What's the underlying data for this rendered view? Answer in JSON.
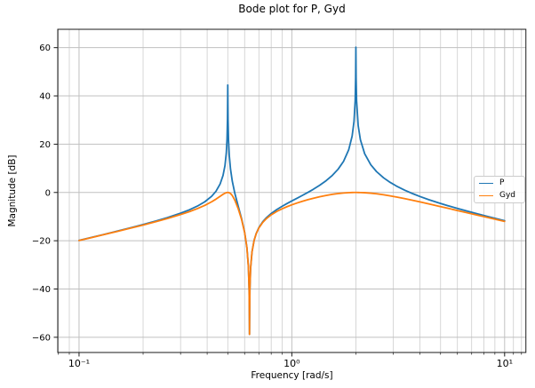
{
  "chart_data": {
    "type": "line",
    "title": "Bode plot for P, Gyd",
    "xlabel": "Frequency [rad/s]",
    "ylabel": "Magnitude [dB]",
    "x_scale": "log",
    "xlim": [
      0.07943,
      12.589
    ],
    "ylim": [
      -66.3,
      67.6
    ],
    "grid": "both",
    "grid_color_major": "#c0c0c0",
    "grid_color_minor": "#cdcdcd",
    "axis_color": "#1a1a1a",
    "background": "#ffffff",
    "legend_position": "center right",
    "x_major_ticks": [
      {
        "value": 0.1,
        "label": "10⁻¹"
      },
      {
        "value": 1,
        "label": "10⁰"
      },
      {
        "value": 10,
        "label": "10¹"
      }
    ],
    "x_minor_ticks": [
      0.08,
      0.09,
      0.2,
      0.3,
      0.4,
      0.5,
      0.6,
      0.7,
      0.8,
      0.9,
      2,
      3,
      4,
      5,
      6,
      7,
      8,
      9,
      11,
      12
    ],
    "y_ticks": [
      {
        "value": 60,
        "label": "60"
      },
      {
        "value": 40,
        "label": "40"
      },
      {
        "value": 20,
        "label": "20"
      },
      {
        "value": 0,
        "label": "0"
      },
      {
        "value": -20,
        "label": "−20"
      },
      {
        "value": -40,
        "label": "−40"
      },
      {
        "value": -60,
        "label": "−60"
      }
    ],
    "series": [
      {
        "name": "P",
        "color": "#1f77b4",
        "points": [
          [
            0.1,
            -19.85
          ],
          [
            0.115,
            -18.58
          ],
          [
            0.13,
            -17.45
          ],
          [
            0.15,
            -16.11
          ],
          [
            0.17,
            -14.91
          ],
          [
            0.2,
            -13.29
          ],
          [
            0.23,
            -11.82
          ],
          [
            0.26,
            -10.42
          ],
          [
            0.3,
            -8.6
          ],
          [
            0.33,
            -7.18
          ],
          [
            0.36,
            -5.64
          ],
          [
            0.39,
            -3.86
          ],
          [
            0.42,
            -1.57
          ],
          [
            0.44,
            0.49
          ],
          [
            0.46,
            3.46
          ],
          [
            0.475,
            7.05
          ],
          [
            0.485,
            11.11
          ],
          [
            0.492,
            16.28
          ],
          [
            0.496,
            22.12
          ],
          [
            0.4985,
            30.53
          ],
          [
            0.4995,
            38.8
          ],
          [
            0.5,
            44.5
          ],
          [
            0.5005,
            38.8
          ],
          [
            0.5015,
            30.4
          ],
          [
            0.504,
            21.75
          ],
          [
            0.508,
            15.53
          ],
          [
            0.515,
            9.69
          ],
          [
            0.525,
            4.66
          ],
          [
            0.54,
            -0.46
          ],
          [
            0.56,
            -5.75
          ],
          [
            0.58,
            -10.71
          ],
          [
            0.6,
            -16.48
          ],
          [
            0.615,
            -22.84
          ],
          [
            0.625,
            -30.79
          ],
          [
            0.63,
            -40.7
          ],
          [
            0.6318,
            -52.25
          ],
          [
            0.6325,
            -58.8
          ],
          [
            0.633,
            -53.9
          ],
          [
            0.635,
            -40.6
          ],
          [
            0.64,
            -31.4
          ],
          [
            0.65,
            -24.6
          ],
          [
            0.665,
            -19.8
          ],
          [
            0.68,
            -17.0
          ],
          [
            0.7,
            -14.56
          ],
          [
            0.73,
            -12.14
          ],
          [
            0.76,
            -10.43
          ],
          [
            0.8,
            -8.72
          ],
          [
            0.85,
            -7.08
          ],
          [
            0.9,
            -5.74
          ],
          [
            0.95,
            -4.58
          ],
          [
            1.0,
            -3.52
          ],
          [
            1.06,
            -2.35
          ],
          [
            1.12,
            -1.23
          ],
          [
            1.19,
            0.03
          ],
          [
            1.26,
            1.28
          ],
          [
            1.35,
            2.94
          ],
          [
            1.45,
            4.89
          ],
          [
            1.55,
            7.07
          ],
          [
            1.65,
            9.64
          ],
          [
            1.75,
            12.9
          ],
          [
            1.85,
            17.65
          ],
          [
            1.92,
            23.31
          ],
          [
            1.96,
            29.44
          ],
          [
            1.985,
            38.0
          ],
          [
            1.995,
            47.6
          ],
          [
            2.0,
            60.2
          ],
          [
            2.005,
            47.4
          ],
          [
            2.015,
            38.07
          ],
          [
            2.05,
            27.73
          ],
          [
            2.1,
            21.83
          ],
          [
            2.2,
            16.03
          ],
          [
            2.35,
            11.48
          ],
          [
            2.5,
            8.65
          ],
          [
            2.7,
            6.05
          ],
          [
            2.9,
            4.16
          ],
          [
            3.1,
            2.67
          ],
          [
            3.4,
            0.9
          ],
          [
            3.7,
            -0.5
          ],
          [
            4.0,
            -1.67
          ],
          [
            4.4,
            -2.97
          ],
          [
            4.9,
            -4.32
          ],
          [
            5.4,
            -5.45
          ],
          [
            6.0,
            -6.62
          ],
          [
            6.7,
            -7.78
          ],
          [
            7.5,
            -8.93
          ],
          [
            8.3,
            -9.92
          ],
          [
            9.1,
            -10.81
          ],
          [
            10.0,
            -11.7
          ]
        ]
      },
      {
        "name": "Gyd",
        "color": "#ff7f0e",
        "points": [
          [
            0.1,
            -19.9
          ],
          [
            0.115,
            -18.64
          ],
          [
            0.13,
            -17.53
          ],
          [
            0.15,
            -16.22
          ],
          [
            0.17,
            -15.05
          ],
          [
            0.2,
            -13.49
          ],
          [
            0.23,
            -12.1
          ],
          [
            0.26,
            -10.8
          ],
          [
            0.3,
            -9.16
          ],
          [
            0.33,
            -7.94
          ],
          [
            0.36,
            -6.69
          ],
          [
            0.39,
            -5.36
          ],
          [
            0.42,
            -3.86
          ],
          [
            0.44,
            -2.77
          ],
          [
            0.46,
            -1.62
          ],
          [
            0.475,
            -0.78
          ],
          [
            0.485,
            -0.32
          ],
          [
            0.492,
            -0.1
          ],
          [
            0.496,
            -0.03
          ],
          [
            0.4985,
            -0.01
          ],
          [
            0.4995,
            0.0
          ],
          [
            0.5,
            0.0
          ],
          [
            0.5005,
            0.0
          ],
          [
            0.5015,
            -0.01
          ],
          [
            0.504,
            -0.03
          ],
          [
            0.508,
            -0.11
          ],
          [
            0.515,
            -0.44
          ],
          [
            0.525,
            -1.28
          ],
          [
            0.54,
            -3.25
          ],
          [
            0.56,
            -6.78
          ],
          [
            0.58,
            -11.06
          ],
          [
            0.6,
            -16.58
          ],
          [
            0.615,
            -22.86
          ],
          [
            0.625,
            -30.79
          ],
          [
            0.63,
            -40.7
          ],
          [
            0.6318,
            -52.3
          ],
          [
            0.6325,
            -58.8
          ],
          [
            0.633,
            -53.9
          ],
          [
            0.635,
            -40.6
          ],
          [
            0.64,
            -31.4
          ],
          [
            0.65,
            -24.6
          ],
          [
            0.665,
            -19.82
          ],
          [
            0.68,
            -17.1
          ],
          [
            0.7,
            -14.71
          ],
          [
            0.73,
            -12.4
          ],
          [
            0.76,
            -10.81
          ],
          [
            0.8,
            -9.27
          ],
          [
            0.85,
            -7.86
          ],
          [
            0.9,
            -6.77
          ],
          [
            0.95,
            -5.88
          ],
          [
            1.0,
            -5.12
          ],
          [
            1.06,
            -4.34
          ],
          [
            1.12,
            -3.67
          ],
          [
            1.19,
            -2.99
          ],
          [
            1.26,
            -2.42
          ],
          [
            1.35,
            -1.78
          ],
          [
            1.45,
            -1.22
          ],
          [
            1.55,
            -0.78
          ],
          [
            1.65,
            -0.45
          ],
          [
            1.75,
            -0.22
          ],
          [
            1.85,
            -0.08
          ],
          [
            1.92,
            -0.02
          ],
          [
            1.96,
            0.0
          ],
          [
            1.985,
            0.0
          ],
          [
            1.995,
            0.0
          ],
          [
            2.0,
            0.0
          ],
          [
            2.005,
            0.0
          ],
          [
            2.015,
            0.0
          ],
          [
            2.05,
            -0.01
          ],
          [
            2.1,
            -0.03
          ],
          [
            2.2,
            -0.11
          ],
          [
            2.35,
            -0.3
          ],
          [
            2.5,
            -0.56
          ],
          [
            2.7,
            -0.96
          ],
          [
            2.9,
            -1.41
          ],
          [
            3.1,
            -1.88
          ],
          [
            3.4,
            -2.58
          ],
          [
            3.7,
            -3.27
          ],
          [
            4.0,
            -3.92
          ],
          [
            4.4,
            -4.74
          ],
          [
            4.9,
            -5.69
          ],
          [
            5.4,
            -6.54
          ],
          [
            6.0,
            -7.47
          ],
          [
            6.7,
            -8.45
          ],
          [
            7.5,
            -9.45
          ],
          [
            8.3,
            -10.34
          ],
          [
            9.1,
            -11.16
          ],
          [
            10.0,
            -11.98
          ]
        ]
      }
    ]
  }
}
